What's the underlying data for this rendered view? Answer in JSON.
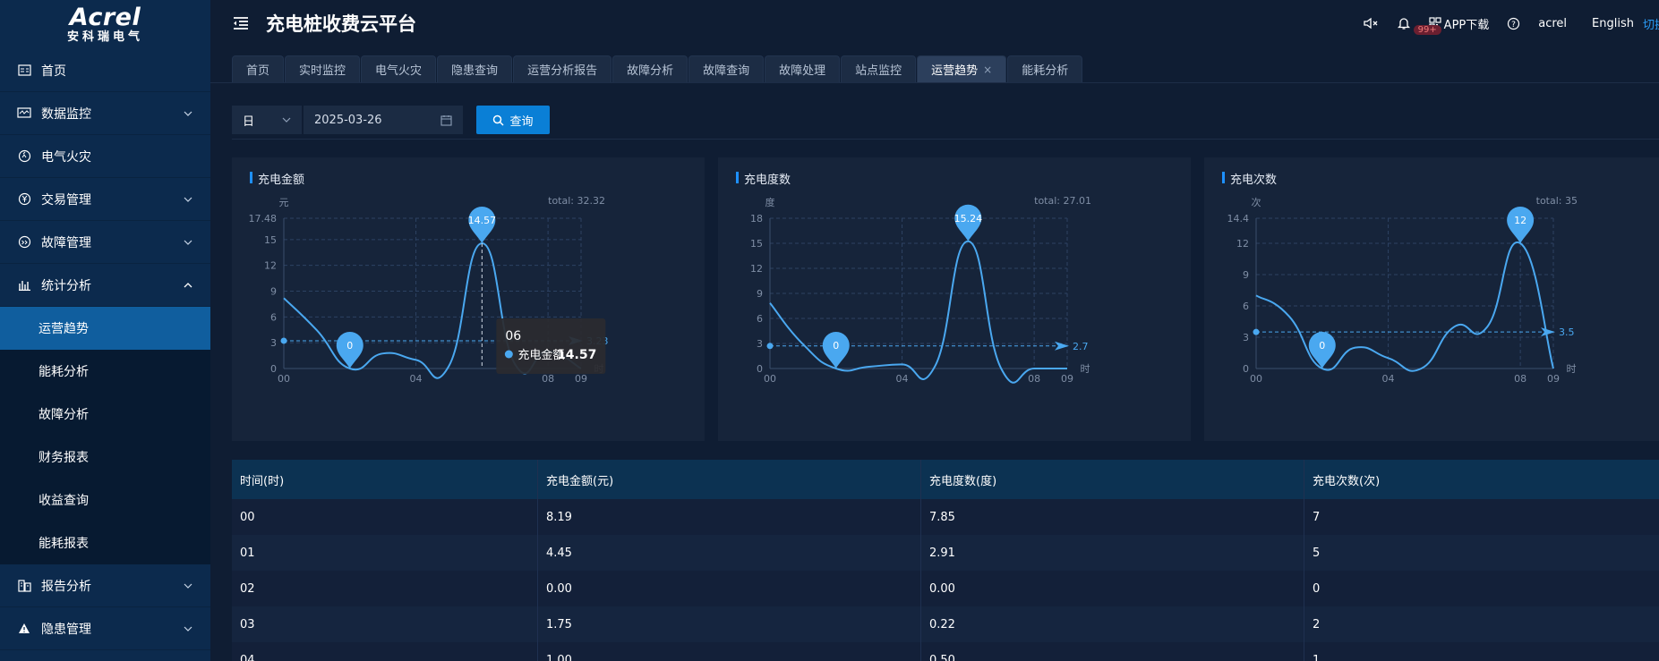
{
  "logo": {
    "brand": "Acrel",
    "brand_cn": "安科瑞电气"
  },
  "app_title": "充电桩收费云平台",
  "header": {
    "badge": "99+",
    "app_download": "APP下载",
    "user": "acrel",
    "language": "English",
    "switch": "切换"
  },
  "sidebar": {
    "top_items": [
      {
        "label": "首页",
        "icon": "home-icon"
      },
      {
        "label": "数据监控",
        "icon": "monitor-icon"
      },
      {
        "label": "电气火灾",
        "icon": "fire-icon"
      },
      {
        "label": "交易管理",
        "icon": "yuan-icon"
      },
      {
        "label": "故障管理",
        "icon": "fault-icon"
      },
      {
        "label": "统计分析",
        "icon": "bar-chart-icon"
      }
    ],
    "sub_items": [
      {
        "label": "运营趋势"
      },
      {
        "label": "能耗分析"
      },
      {
        "label": "故障分析"
      },
      {
        "label": "财务报表"
      },
      {
        "label": "收益查询"
      },
      {
        "label": "能耗报表"
      }
    ],
    "bottom_items": [
      {
        "label": "报告分析",
        "icon": "report-icon"
      },
      {
        "label": "隐患管理",
        "icon": "warning-icon"
      }
    ]
  },
  "tabs": [
    "首页",
    "实时监控",
    "电气火灾",
    "隐患查询",
    "运营分析报告",
    "故障分析",
    "故障查询",
    "故障处理",
    "站点监控",
    "运营趋势",
    "能耗分析"
  ],
  "query": {
    "period": "日",
    "date": "2025-03-26",
    "button": "查询"
  },
  "colors": {
    "accent": "#0a7fd6",
    "line": "#4aa8f0",
    "sidebar": "#0c2a4d"
  },
  "chart_data": [
    {
      "type": "line",
      "title": "充电金额",
      "unit": "元",
      "total_label": "total: 32.32",
      "x_label": "时",
      "x_ticks": [
        "00",
        "04",
        "08",
        "09"
      ],
      "y_ticks": [
        "17.48",
        "15",
        "12",
        "9",
        "6",
        "3",
        "0"
      ],
      "ylim": [
        0,
        17.48
      ],
      "x": [
        0,
        1,
        2,
        3,
        4,
        5,
        6,
        7,
        8,
        9
      ],
      "values": [
        8.19,
        4.45,
        0,
        1.75,
        1.0,
        0.3,
        14.57,
        0.5,
        2.0,
        0
      ],
      "max_label": "14.57",
      "min_label": "0",
      "avg_label": "3.23",
      "avg": 3.23,
      "tooltip": {
        "x": "06",
        "name": "充电金额",
        "value": "14.57"
      }
    },
    {
      "type": "line",
      "title": "充电度数",
      "unit": "度",
      "total_label": "total: 27.01",
      "x_label": "时",
      "x_ticks": [
        "00",
        "04",
        "08",
        "09"
      ],
      "y_ticks": [
        "18",
        "15",
        "12",
        "9",
        "6",
        "3",
        "0"
      ],
      "ylim": [
        0,
        18
      ],
      "x": [
        0,
        1,
        2,
        3,
        4,
        5,
        6,
        7,
        8,
        9
      ],
      "values": [
        7.85,
        2.91,
        0,
        0.22,
        0.5,
        0.3,
        15.24,
        0,
        0,
        0
      ],
      "max_label": "15.24",
      "min_label": "0",
      "avg_label": "2.7",
      "avg": 2.7
    },
    {
      "type": "line",
      "title": "充电次数",
      "unit": "次",
      "total_label": "total: 35",
      "x_label": "时",
      "x_ticks": [
        "00",
        "04",
        "08",
        "09"
      ],
      "y_ticks": [
        "14.4",
        "12",
        "9",
        "6",
        "3",
        "0"
      ],
      "ylim": [
        0,
        14.4
      ],
      "x": [
        0,
        1,
        2,
        3,
        4,
        5,
        6,
        7,
        8,
        9
      ],
      "values": [
        7,
        5,
        0,
        2,
        1,
        0,
        4,
        4,
        12,
        0
      ],
      "max_label": "12",
      "min_label": "0",
      "avg_label": "3.5",
      "avg": 3.5
    }
  ],
  "table": {
    "headers": [
      "时间(时)",
      "充电金额(元)",
      "充电度数(度)",
      "充电次数(次)"
    ],
    "rows": [
      [
        "00",
        "8.19",
        "7.85",
        "7"
      ],
      [
        "01",
        "4.45",
        "2.91",
        "5"
      ],
      [
        "02",
        "0.00",
        "0.00",
        "0"
      ],
      [
        "03",
        "1.75",
        "0.22",
        "2"
      ],
      [
        "04",
        "1.00",
        "0.50",
        "1"
      ]
    ]
  }
}
